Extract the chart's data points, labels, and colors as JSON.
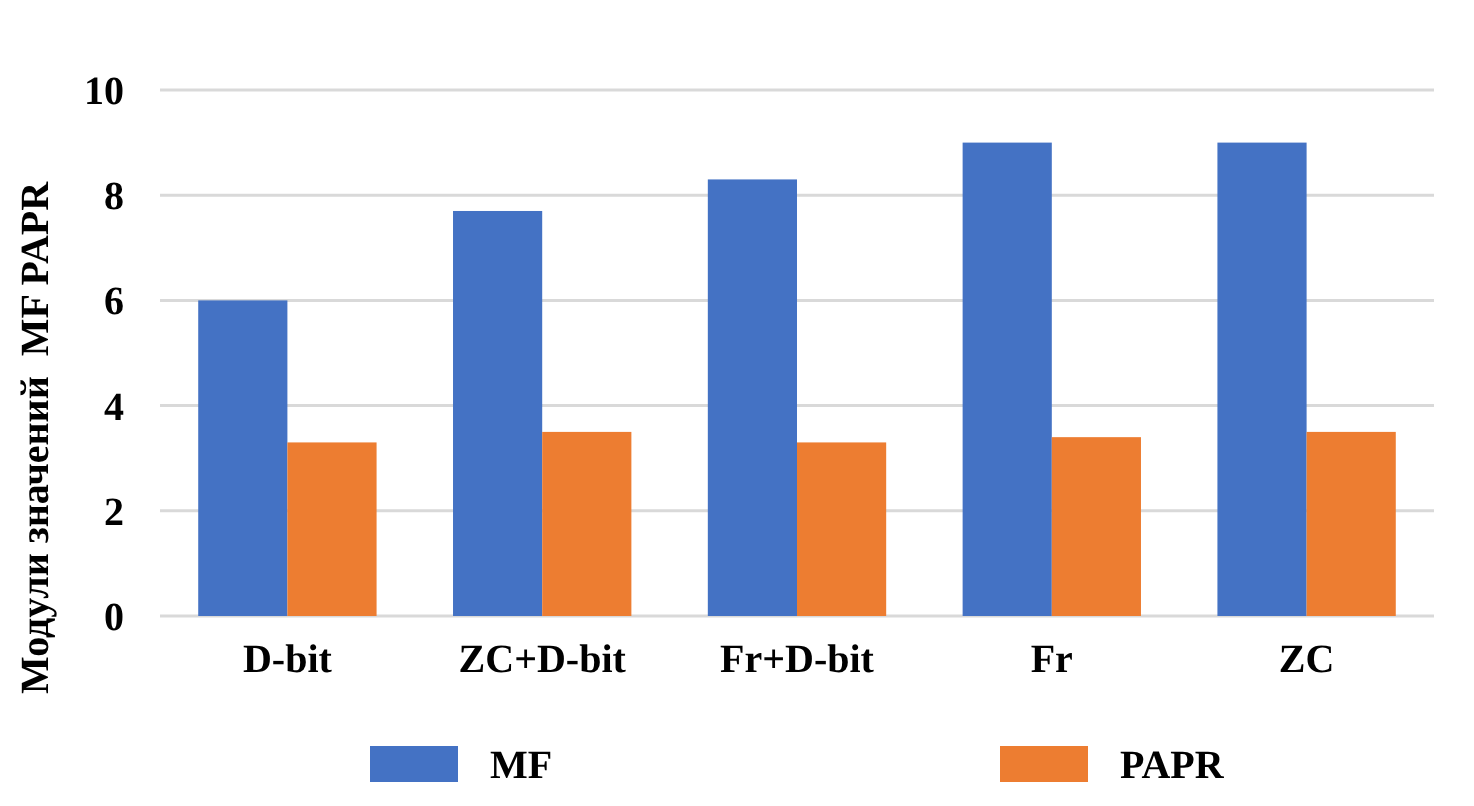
{
  "chart_data": {
    "type": "bar",
    "ylabel": "Модули значений  MF PAPR",
    "categories": [
      "D-bit",
      "ZC+D-bit",
      "Fr+D-bit",
      "Fr",
      "ZC"
    ],
    "series": [
      {
        "name": "MF",
        "color": "#4472c4",
        "values": [
          6.0,
          7.7,
          8.3,
          9.0,
          9.0
        ]
      },
      {
        "name": "PAPR",
        "color": "#ed7d31",
        "values": [
          3.3,
          3.5,
          3.3,
          3.4,
          3.5
        ]
      }
    ],
    "ylim": [
      0,
      10
    ],
    "yticks": [
      0,
      2,
      4,
      6,
      8,
      10
    ],
    "grid": "y",
    "legend": "bottom"
  }
}
